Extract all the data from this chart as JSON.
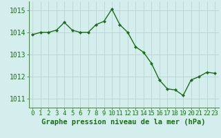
{
  "x": [
    0,
    1,
    2,
    3,
    4,
    5,
    6,
    7,
    8,
    9,
    10,
    11,
    12,
    13,
    14,
    15,
    16,
    17,
    18,
    19,
    20,
    21,
    22,
    23
  ],
  "y": [
    1013.9,
    1014.0,
    1014.0,
    1014.1,
    1014.45,
    1014.1,
    1014.0,
    1014.0,
    1014.35,
    1014.5,
    1015.05,
    1014.35,
    1014.0,
    1013.35,
    1013.1,
    1012.6,
    1011.85,
    1011.45,
    1011.4,
    1011.15,
    1011.85,
    1012.0,
    1012.2,
    1012.15
  ],
  "line_color": "#1a6e1a",
  "marker": "D",
  "marker_size": 2.2,
  "bg_color": "#d4eeed",
  "grid_color": "#b5d5d0",
  "xlabel": "Graphe pression niveau de la mer (hPa)",
  "xlabel_fontsize": 7.5,
  "tick_fontsize": 6.5,
  "ytick_fontsize": 7,
  "ylim": [
    1010.6,
    1015.4
  ],
  "xlim": [
    -0.5,
    23.5
  ],
  "yticks": [
    1011,
    1012,
    1013,
    1014,
    1015
  ],
  "xticks": [
    0,
    1,
    2,
    3,
    4,
    5,
    6,
    7,
    8,
    9,
    10,
    11,
    12,
    13,
    14,
    15,
    16,
    17,
    18,
    19,
    20,
    21,
    22,
    23
  ],
  "line_width": 1.0,
  "spine_color": "#558855"
}
